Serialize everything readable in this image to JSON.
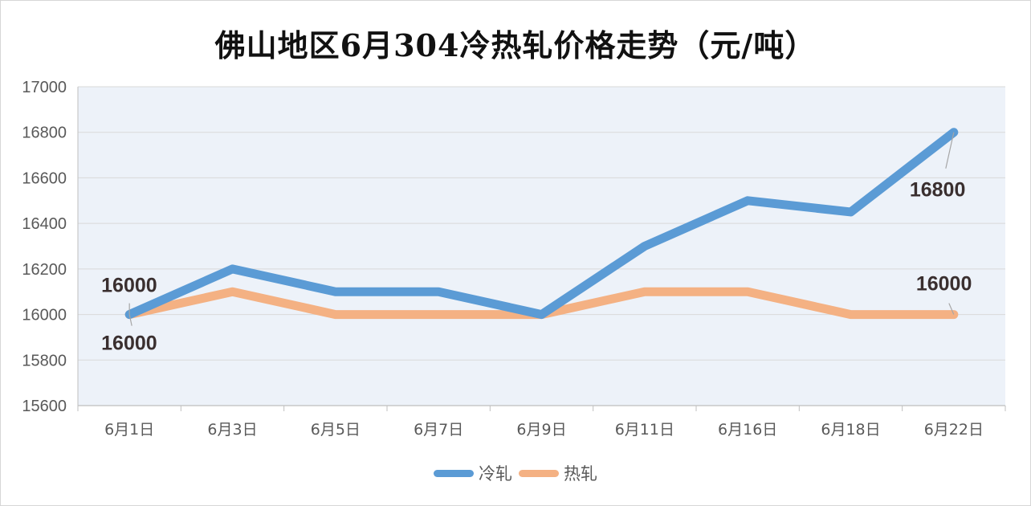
{
  "chart_data": {
    "type": "line",
    "title": "佛山地区6月304冷热轧价格走势（元/吨）",
    "xlabel": "",
    "ylabel": "",
    "categories": [
      "6月1日",
      "6月3日",
      "6月5日",
      "6月7日",
      "6月9日",
      "6月11日",
      "6月16日",
      "6月18日",
      "6月22日"
    ],
    "ylim": [
      15600,
      17000
    ],
    "yticks": [
      15600,
      15800,
      16000,
      16200,
      16400,
      16600,
      16800,
      17000
    ],
    "grid": true,
    "legend_position": "bottom",
    "series": [
      {
        "name": "冷轧",
        "color": "#5b9bd5",
        "values": [
          16000,
          16200,
          16100,
          16100,
          16000,
          16300,
          16500,
          16450,
          16800
        ],
        "labels": [
          {
            "index": 0,
            "text": "16000"
          },
          {
            "index": 8,
            "text": "16800"
          }
        ]
      },
      {
        "name": "热轧",
        "color": "#f4b183",
        "values": [
          16000,
          16100,
          16000,
          16000,
          16000,
          16100,
          16100,
          16000,
          16000
        ],
        "labels": [
          {
            "index": 0,
            "text": "16000"
          },
          {
            "index": 8,
            "text": "16000"
          }
        ]
      }
    ],
    "plot_background": "#edf2f9",
    "grid_color": "#d9d9d9"
  }
}
